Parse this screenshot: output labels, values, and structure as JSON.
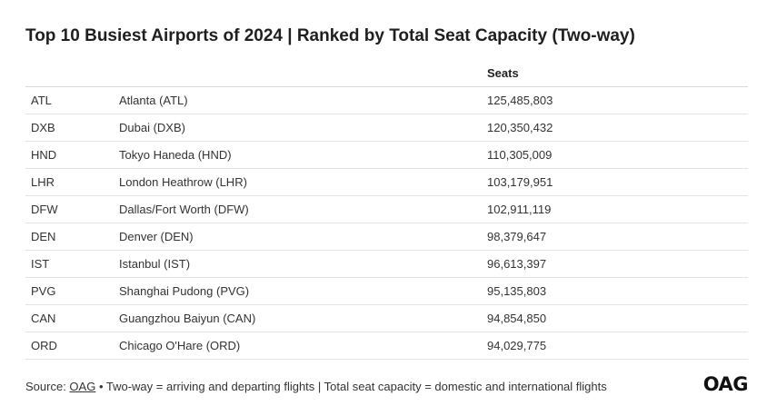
{
  "title": "Top 10 Busiest Airports of 2024 | Ranked by Total Seat Capacity (Two-way)",
  "table": {
    "headers": [
      "",
      "",
      "Seats"
    ],
    "rows": [
      {
        "code": "ATL",
        "name": "Atlanta (ATL)",
        "seats": "125,485,803"
      },
      {
        "code": "DXB",
        "name": "Dubai (DXB)",
        "seats": "120,350,432"
      },
      {
        "code": "HND",
        "name": "Tokyo Haneda (HND)",
        "seats": "110,305,009"
      },
      {
        "code": "LHR",
        "name": "London Heathrow (LHR)",
        "seats": "103,179,951"
      },
      {
        "code": "DFW",
        "name": "Dallas/Fort Worth (DFW)",
        "seats": "102,911,119"
      },
      {
        "code": "DEN",
        "name": "Denver (DEN)",
        "seats": "98,379,647"
      },
      {
        "code": "IST",
        "name": "Istanbul (IST)",
        "seats": "96,613,397"
      },
      {
        "code": "PVG",
        "name": "Shanghai Pudong (PVG)",
        "seats": "95,135,803"
      },
      {
        "code": "CAN",
        "name": "Guangzhou Baiyun (CAN)",
        "seats": "94,854,850"
      },
      {
        "code": "ORD",
        "name": "Chicago O'Hare (ORD)",
        "seats": "94,029,775"
      }
    ]
  },
  "footer": {
    "prefix": "Source: ",
    "source_link": "OAG",
    "note": " • Two-way = arriving and departing flights | Total seat capacity = domestic and international flights"
  },
  "logo_text": "OAG",
  "chart_data": {
    "type": "table",
    "title": "Top 10 Busiest Airports of 2024 | Ranked by Total Seat Capacity (Two-way)",
    "columns": [
      "",
      "",
      "Seats"
    ],
    "rows": [
      [
        "ATL",
        "Atlanta (ATL)",
        "125,485,803"
      ],
      [
        "DXB",
        "Dubai (DXB)",
        "120,350,432"
      ],
      [
        "HND",
        "Tokyo Haneda (HND)",
        "110,305,009"
      ],
      [
        "LHR",
        "London Heathrow (LHR)",
        "103,179,951"
      ],
      [
        "DFW",
        "Dallas/Fort Worth (DFW)",
        "102,911,119"
      ],
      [
        "DEN",
        "Denver (DEN)",
        "98,379,647"
      ],
      [
        "IST",
        "Istanbul (IST)",
        "96,613,397"
      ],
      [
        "PVG",
        "Shanghai Pudong (PVG)",
        "95,135,803"
      ],
      [
        "CAN",
        "Guangzhou Baiyun (CAN)",
        "94,854,850"
      ],
      [
        "ORD",
        "Chicago O'Hare (ORD)",
        "94,029,775"
      ]
    ],
    "values": [
      125485803,
      120350432,
      110305009,
      103179951,
      102911119,
      98379647,
      96613397,
      95135803,
      94854850,
      94029775
    ]
  }
}
